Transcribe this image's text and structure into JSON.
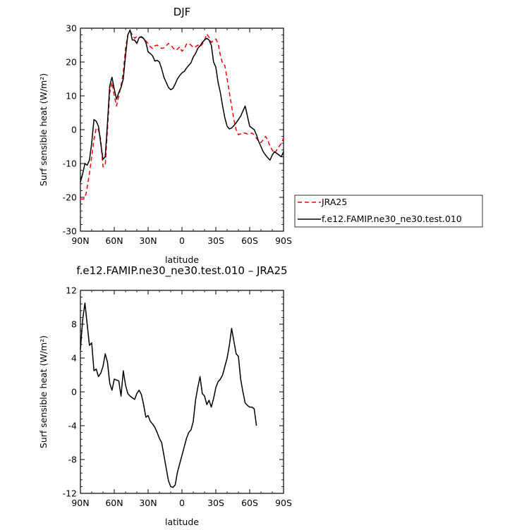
{
  "chart_data": [
    {
      "type": "line",
      "title": "DJF",
      "xlabel": "latitude",
      "ylabel": "Surf sensible heat (W/m²)",
      "ylim": [
        -30,
        30
      ],
      "xlim": [
        -90,
        90
      ],
      "yticks": [
        -30,
        -20,
        -10,
        0,
        10,
        20,
        30
      ],
      "xticks": [
        {
          "value": -90,
          "label": "90N"
        },
        {
          "value": -60,
          "label": "60N"
        },
        {
          "value": -30,
          "label": "30N"
        },
        {
          "value": 0,
          "label": "0"
        },
        {
          "value": 30,
          "label": "30S"
        },
        {
          "value": 60,
          "label": "60S"
        },
        {
          "value": 90,
          "label": "90S"
        }
      ],
      "legend_placement": "right",
      "series": [
        {
          "name": "JRA25",
          "color": "#ff0000",
          "style": "dashed",
          "points": [
            [
              -90,
              -20.5
            ],
            [
              -87,
              -20.5
            ],
            [
              -85,
              -19
            ],
            [
              -82,
              -13
            ],
            [
              -80,
              -8
            ],
            [
              -78,
              -3
            ],
            [
              -76,
              0.5
            ],
            [
              -74,
              0
            ],
            [
              -72,
              -3
            ],
            [
              -70,
              -11
            ],
            [
              -68,
              -10.5
            ],
            [
              -66,
              0
            ],
            [
              -64,
              11
            ],
            [
              -62,
              14
            ],
            [
              -60,
              10
            ],
            [
              -58,
              7
            ],
            [
              -56,
              10
            ],
            [
              -54,
              13
            ],
            [
              -52,
              17
            ],
            [
              -50,
              24
            ],
            [
              -48,
              28
            ],
            [
              -46,
              29.2
            ],
            [
              -44,
              28
            ],
            [
              -42,
              27
            ],
            [
              -40,
              27.5
            ],
            [
              -38,
              27.5
            ],
            [
              -36,
              27.3
            ],
            [
              -34,
              27
            ],
            [
              -32,
              26.2
            ],
            [
              -30,
              25.5
            ],
            [
              -28,
              24.5
            ],
            [
              -26,
              24
            ],
            [
              -24,
              24.8
            ],
            [
              -22,
              25
            ],
            [
              -20,
              24.5
            ],
            [
              -18,
              24
            ],
            [
              -16,
              24.2
            ],
            [
              -14,
              24.8
            ],
            [
              -12,
              25.5
            ],
            [
              -10,
              25
            ],
            [
              -8,
              24.2
            ],
            [
              -6,
              23.5
            ],
            [
              -4,
              23.8
            ],
            [
              -2,
              24.5
            ],
            [
              0,
              23.2
            ],
            [
              2,
              23.8
            ],
            [
              4,
              25.3
            ],
            [
              6,
              25.5
            ],
            [
              8,
              25
            ],
            [
              10,
              24.3
            ],
            [
              12,
              24.5
            ],
            [
              14,
              25
            ],
            [
              16,
              24.5
            ],
            [
              18,
              25.3
            ],
            [
              20,
              26.5
            ],
            [
              22,
              28.3
            ],
            [
              24,
              27.3
            ],
            [
              26,
              25.8
            ],
            [
              28,
              26.3
            ],
            [
              30,
              26.8
            ],
            [
              32,
              25.5
            ],
            [
              34,
              22
            ],
            [
              36,
              19.5
            ],
            [
              38,
              19
            ],
            [
              40,
              15
            ],
            [
              42,
              11
            ],
            [
              44,
              7
            ],
            [
              46,
              3
            ],
            [
              48,
              0
            ],
            [
              50,
              -1.5
            ],
            [
              52,
              -1.2
            ],
            [
              54,
              -1
            ],
            [
              56,
              -1
            ],
            [
              58,
              -1.3
            ],
            [
              60,
              -1.2
            ],
            [
              62,
              -1
            ],
            [
              64,
              -1.5
            ],
            [
              66,
              -2.5
            ],
            [
              68,
              -3.5
            ],
            [
              70,
              -3.8
            ],
            [
              72,
              -3
            ],
            [
              74,
              -2
            ],
            [
              76,
              -3
            ],
            [
              78,
              -5
            ],
            [
              80,
              -6
            ],
            [
              82,
              -7
            ],
            [
              84,
              -6
            ],
            [
              86,
              -5
            ],
            [
              88,
              -4
            ],
            [
              90,
              -2.5
            ]
          ]
        },
        {
          "name": "f.e12.FAMIP.ne30_ne30.test.010",
          "color": "#000000",
          "style": "solid",
          "points": [
            [
              -90,
              -15.5
            ],
            [
              -88,
              -13
            ],
            [
              -86,
              -10
            ],
            [
              -84,
              -10.5
            ],
            [
              -82,
              -9
            ],
            [
              -80,
              -4
            ],
            [
              -78,
              3
            ],
            [
              -76,
              2.5
            ],
            [
              -74,
              1
            ],
            [
              -72,
              -4
            ],
            [
              -70,
              -8.8
            ],
            [
              -68,
              -8
            ],
            [
              -66,
              2
            ],
            [
              -64,
              13
            ],
            [
              -62,
              15.5
            ],
            [
              -60,
              12
            ],
            [
              -58,
              9
            ],
            [
              -56,
              11
            ],
            [
              -54,
              12.5
            ],
            [
              -52,
              15
            ],
            [
              -50,
              22
            ],
            [
              -48,
              28
            ],
            [
              -46,
              29.5
            ],
            [
              -44,
              26.5
            ],
            [
              -42,
              26.5
            ],
            [
              -40,
              25.5
            ],
            [
              -38,
              27.2
            ],
            [
              -36,
              27.5
            ],
            [
              -34,
              27
            ],
            [
              -32,
              25.8
            ],
            [
              -30,
              23
            ],
            [
              -28,
              22.5
            ],
            [
              -26,
              21.8
            ],
            [
              -24,
              20.3
            ],
            [
              -22,
              20.5
            ],
            [
              -20,
              20
            ],
            [
              -18,
              18
            ],
            [
              -16,
              15.5
            ],
            [
              -14,
              14
            ],
            [
              -12,
              12.5
            ],
            [
              -10,
              11.8
            ],
            [
              -8,
              12.2
            ],
            [
              -6,
              13.5
            ],
            [
              -4,
              15
            ],
            [
              -2,
              16
            ],
            [
              0,
              16.8
            ],
            [
              2,
              17.2
            ],
            [
              4,
              18.2
            ],
            [
              6,
              19
            ],
            [
              8,
              19.8
            ],
            [
              10,
              21.5
            ],
            [
              12,
              22.5
            ],
            [
              14,
              24
            ],
            [
              16,
              24.8
            ],
            [
              18,
              25.8
            ],
            [
              20,
              26.5
            ],
            [
              22,
              27
            ],
            [
              24,
              26.5
            ],
            [
              26,
              25
            ],
            [
              28,
              20
            ],
            [
              30,
              18.5
            ],
            [
              32,
              14
            ],
            [
              34,
              11
            ],
            [
              36,
              7
            ],
            [
              38,
              3.5
            ],
            [
              40,
              1
            ],
            [
              42,
              0.2
            ],
            [
              44,
              0.5
            ],
            [
              46,
              1.2
            ],
            [
              48,
              2
            ],
            [
              50,
              3
            ],
            [
              52,
              4
            ],
            [
              54,
              5.5
            ],
            [
              56,
              7
            ],
            [
              58,
              4
            ],
            [
              60,
              1
            ],
            [
              62,
              0.5
            ],
            [
              64,
              0
            ],
            [
              66,
              -1.5
            ],
            [
              68,
              -3.5
            ],
            [
              70,
              -5
            ],
            [
              72,
              -6.5
            ],
            [
              74,
              -7.5
            ],
            [
              76,
              -8.3
            ],
            [
              78,
              -9
            ],
            [
              80,
              -7.5
            ],
            [
              82,
              -6.5
            ],
            [
              84,
              -7
            ],
            [
              86,
              -7.5
            ],
            [
              88,
              -8
            ],
            [
              90,
              -6.5
            ]
          ]
        }
      ]
    },
    {
      "type": "line",
      "title": "f.e12.FAMIP.ne30_ne30.test.010  –  JRA25",
      "xlabel": "latitude",
      "ylabel": "Surf sensible heat (W/m²)",
      "ylim": [
        -12,
        12
      ],
      "xlim": [
        -90,
        90
      ],
      "yticks": [
        -12,
        -8,
        -4,
        0,
        4,
        8,
        12
      ],
      "xticks": [
        {
          "value": -90,
          "label": "90N"
        },
        {
          "value": -60,
          "label": "60N"
        },
        {
          "value": -30,
          "label": "30N"
        },
        {
          "value": 0,
          "label": "0"
        },
        {
          "value": 30,
          "label": "30S"
        },
        {
          "value": 60,
          "label": "60S"
        },
        {
          "value": 90,
          "label": "90S"
        }
      ],
      "series": [
        {
          "color": "#000000",
          "style": "solid",
          "points": [
            [
              -90,
              5
            ],
            [
              -88,
              8.5
            ],
            [
              -86,
              10.5
            ],
            [
              -84,
              8
            ],
            [
              -82,
              5.5
            ],
            [
              -80,
              5.8
            ],
            [
              -78,
              2.5
            ],
            [
              -76,
              2.7
            ],
            [
              -74,
              1.8
            ],
            [
              -72,
              2.2
            ],
            [
              -70,
              3
            ],
            [
              -68,
              4.5
            ],
            [
              -66,
              3.5
            ],
            [
              -64,
              1
            ],
            [
              -62,
              0.2
            ],
            [
              -60,
              1.5
            ],
            [
              -58,
              1.4
            ],
            [
              -56,
              1.3
            ],
            [
              -54,
              -0.5
            ],
            [
              -52,
              2.5
            ],
            [
              -50,
              0.8
            ],
            [
              -48,
              -0.2
            ],
            [
              -46,
              -0.5
            ],
            [
              -44,
              -0.7
            ],
            [
              -42,
              -0.9
            ],
            [
              -40,
              -0.2
            ],
            [
              -38,
              0.2
            ],
            [
              -36,
              -0.3
            ],
            [
              -34,
              -1.5
            ],
            [
              -32,
              -3
            ],
            [
              -30,
              -2.8
            ],
            [
              -28,
              -3.5
            ],
            [
              -26,
              -3.8
            ],
            [
              -24,
              -4.2
            ],
            [
              -22,
              -4.8
            ],
            [
              -20,
              -5.5
            ],
            [
              -18,
              -6
            ],
            [
              -16,
              -7.5
            ],
            [
              -14,
              -9
            ],
            [
              -12,
              -10.5
            ],
            [
              -10,
              -11.2
            ],
            [
              -8,
              -11.3
            ],
            [
              -6,
              -11
            ],
            [
              -4,
              -9.5
            ],
            [
              -2,
              -8.5
            ],
            [
              0,
              -7.5
            ],
            [
              2,
              -6.5
            ],
            [
              4,
              -5.5
            ],
            [
              6,
              -4.8
            ],
            [
              8,
              -4.5
            ],
            [
              10,
              -3.5
            ],
            [
              12,
              -1
            ],
            [
              14,
              0.5
            ],
            [
              16,
              1.8
            ],
            [
              18,
              -0.2
            ],
            [
              20,
              -0.5
            ],
            [
              22,
              -1.5
            ],
            [
              24,
              -1
            ],
            [
              26,
              -1.8
            ],
            [
              28,
              -0.8
            ],
            [
              30,
              0.5
            ],
            [
              32,
              1.2
            ],
            [
              34,
              1.5
            ],
            [
              36,
              2
            ],
            [
              38,
              3
            ],
            [
              40,
              4
            ],
            [
              42,
              5.5
            ],
            [
              44,
              7.5
            ],
            [
              46,
              6
            ],
            [
              48,
              4.5
            ],
            [
              50,
              4.2
            ],
            [
              52,
              1.5
            ],
            [
              54,
              0
            ],
            [
              56,
              -1.3
            ],
            [
              58,
              -1.6
            ],
            [
              60,
              -1.8
            ],
            [
              62,
              -1.8
            ],
            [
              64,
              -2
            ],
            [
              66,
              -4
            ]
          ]
        }
      ]
    }
  ]
}
